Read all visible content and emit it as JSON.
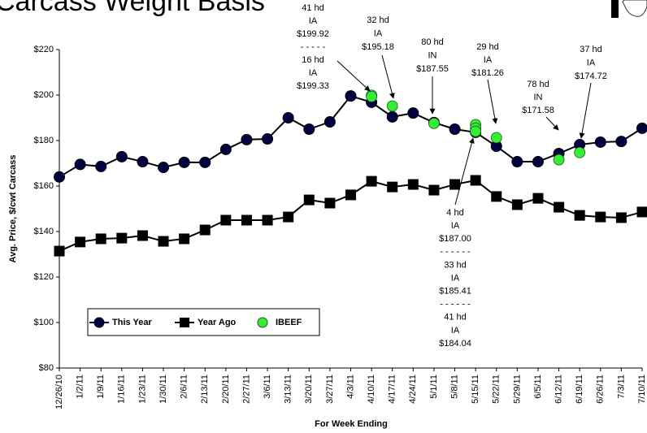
{
  "chart_data": {
    "type": "line",
    "title": "Carcass Weight Basis",
    "y_label": "Avg. Price, $/cwt Carcass",
    "x_label": "For Week Ending",
    "categories": [
      "12/26/10",
      "1/2/11",
      "1/9/11",
      "1/16/11",
      "1/23/11",
      "1/30/11",
      "2/6/11",
      "2/13/11",
      "2/20/11",
      "2/27/11",
      "3/6/11",
      "3/13/11",
      "3/20/11",
      "3/27/11",
      "4/3/11",
      "4/10/11",
      "4/17/11",
      "4/24/11",
      "5/1/11",
      "5/8/11",
      "5/15/11",
      "5/22/11",
      "5/29/11",
      "6/5/11",
      "6/12/11",
      "6/19/11",
      "6/26/11",
      "7/3/11",
      "7/10/11"
    ],
    "series": [
      {
        "name": "This Year",
        "color": "#000040",
        "marker": "circle",
        "values": [
          164,
          169.5,
          168.6,
          172.9,
          170.7,
          168.2,
          170.4,
          170.4,
          176.1,
          180.4,
          180.7,
          190,
          185,
          188.2,
          199.6,
          196.8,
          190.4,
          192.1,
          187.9,
          185,
          183.6,
          177.5,
          170.7,
          170.7,
          174.3,
          178.2,
          179.3,
          179.6,
          185.4
        ]
      },
      {
        "name": "Year Ago",
        "color": "#000000",
        "marker": "square",
        "values": [
          131.4,
          135.4,
          136.8,
          137.1,
          138.2,
          135.7,
          136.8,
          140.7,
          145,
          145,
          145,
          146.4,
          153.9,
          152.5,
          156.1,
          162.1,
          159.6,
          160.7,
          158.2,
          160.7,
          162.5,
          155.4,
          151.8,
          154.6,
          150.7,
          147.1,
          146.4,
          146.1,
          148.6
        ]
      },
      {
        "name": "IBEEF",
        "color": "#33ee33",
        "marker": "dot",
        "x": [
          "4/10/11",
          "4/10/11",
          "4/17/11",
          "5/1/11",
          "5/15/11",
          "5/15/11",
          "5/15/11",
          "5/22/11",
          "6/12/11",
          "6/19/11"
        ],
        "values": [
          199.92,
          199.33,
          195.18,
          187.55,
          187.0,
          185.41,
          184.04,
          181.26,
          171.58,
          174.72
        ]
      }
    ],
    "ylim": [
      80,
      220
    ],
    "yticks": [
      {
        "value": 80,
        "label": "$80"
      },
      {
        "value": 100,
        "label": "$100"
      },
      {
        "value": 120,
        "label": "$120"
      },
      {
        "value": 140,
        "label": "$140"
      },
      {
        "value": 160,
        "label": "$160"
      },
      {
        "value": 180,
        "label": "$180"
      },
      {
        "value": 200,
        "label": "$200"
      },
      {
        "value": 220,
        "label": "$220"
      }
    ],
    "grid": false,
    "annotations": [
      {
        "lines": [
          "41 hd",
          "IA",
          "$199.92",
          "- - - - -",
          "16 hd",
          "IA",
          "$199.33"
        ]
      },
      {
        "lines": [
          "32 hd",
          "IA",
          "$195.18"
        ]
      },
      {
        "lines": [
          "80 hd",
          "IN",
          "$187.55"
        ]
      },
      {
        "lines": [
          "29 hd",
          "IA",
          "$181.26"
        ]
      },
      {
        "lines": [
          "78 hd",
          "IN",
          "$171.58"
        ]
      },
      {
        "lines": [
          "37 hd",
          "IA",
          "$174.72"
        ]
      },
      {
        "lines": [
          "4 hd",
          "IA",
          "$187.00",
          "- - - - - -",
          "33 hd",
          "IA",
          "$185.41",
          "- - - - - -",
          "41 hd",
          "IA",
          "$184.04"
        ]
      }
    ]
  }
}
